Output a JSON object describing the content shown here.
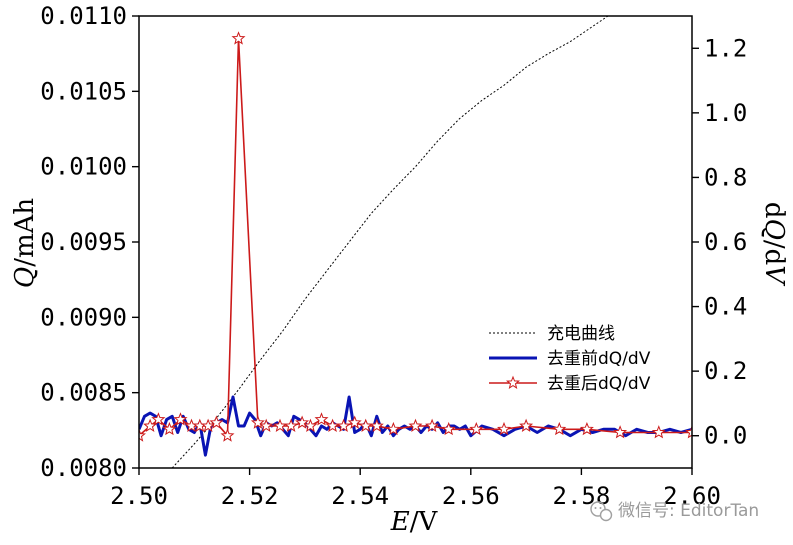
{
  "chart_data": {
    "type": "line",
    "x_label": {
      "var": "E",
      "unit": "/V"
    },
    "y_left_label": {
      "var": "Q",
      "unit": "/mAh"
    },
    "y_right_label": {
      "prefix": "d",
      "var": "Q",
      "suffix": "/d",
      "var2": "V"
    },
    "xlim": [
      2.5,
      2.6
    ],
    "ylim_left": [
      0.008,
      0.011
    ],
    "ylim_right": [
      -0.1,
      1.3
    ],
    "x_ticks": [
      "2.50",
      "2.52",
      "2.54",
      "2.56",
      "2.58",
      "2.60"
    ],
    "x_tick_values": [
      2.5,
      2.52,
      2.54,
      2.56,
      2.58,
      2.6
    ],
    "y_left_ticks": [
      "0.0080",
      "0.0085",
      "0.0090",
      "0.0095",
      "0.0100",
      "0.0105",
      "0.0110"
    ],
    "y_left_tick_values": [
      0.008,
      0.0085,
      0.009,
      0.0095,
      0.01,
      0.0105,
      0.011
    ],
    "y_right_ticks": [
      "0.0",
      "0.2",
      "0.4",
      "0.6",
      "0.8",
      "1.0",
      "1.2"
    ],
    "y_right_tick_values": [
      0.0,
      0.2,
      0.4,
      0.6,
      0.8,
      1.0,
      1.2
    ],
    "series": [
      {
        "name": "充电曲线",
        "axis": "left",
        "color": "#000000",
        "style": "dotted",
        "x": [
          2.506,
          2.51,
          2.514,
          2.518,
          2.522,
          2.526,
          2.53,
          2.534,
          2.538,
          2.542,
          2.546,
          2.55,
          2.554,
          2.558,
          2.562,
          2.566,
          2.57,
          2.574,
          2.578,
          2.582,
          2.586,
          2.5895
        ],
        "y": [
          0.008,
          0.00816,
          0.00833,
          0.00852,
          0.00872,
          0.00891,
          0.00912,
          0.00931,
          0.0095,
          0.00969,
          0.00985,
          0.01,
          0.01017,
          0.01032,
          0.01044,
          0.01054,
          0.01066,
          0.01075,
          0.01083,
          0.01093,
          0.01103,
          0.0111
        ]
      },
      {
        "name": "去重前dQ/dV",
        "axis": "right",
        "color": "#0a14b4",
        "style": "solid",
        "x": [
          2.5,
          2.501,
          2.502,
          2.503,
          2.504,
          2.505,
          2.506,
          2.507,
          2.508,
          2.509,
          2.51,
          2.511,
          2.512,
          2.513,
          2.514,
          2.515,
          2.516,
          2.517,
          2.518,
          2.519,
          2.52,
          2.521,
          2.522,
          2.523,
          2.524,
          2.525,
          2.526,
          2.527,
          2.528,
          2.529,
          2.53,
          2.531,
          2.532,
          2.533,
          2.534,
          2.535,
          2.536,
          2.537,
          2.538,
          2.539,
          2.54,
          2.541,
          2.542,
          2.543,
          2.544,
          2.545,
          2.546,
          2.547,
          2.548,
          2.549,
          2.55,
          2.551,
          2.552,
          2.553,
          2.554,
          2.555,
          2.556,
          2.557,
          2.558,
          2.559,
          2.56,
          2.562,
          2.564,
          2.566,
          2.568,
          2.57,
          2.572,
          2.574,
          2.576,
          2.578,
          2.58,
          2.582,
          2.584,
          2.586,
          2.588,
          2.59,
          2.592,
          2.594,
          2.596,
          2.598,
          2.6
        ],
        "y": [
          0.02,
          0.06,
          0.07,
          0.06,
          0.0,
          0.05,
          0.06,
          0.01,
          0.06,
          0.02,
          0.01,
          0.04,
          -0.06,
          0.03,
          0.04,
          0.05,
          0.04,
          0.12,
          0.03,
          0.03,
          0.07,
          0.05,
          0.0,
          0.04,
          0.03,
          0.04,
          0.02,
          0.0,
          0.06,
          0.05,
          0.04,
          0.02,
          0.0,
          0.03,
          0.02,
          0.04,
          0.03,
          0.02,
          0.12,
          0.01,
          0.02,
          0.04,
          0.0,
          0.06,
          0.01,
          0.03,
          0.0,
          0.02,
          0.03,
          0.02,
          0.03,
          0.01,
          0.03,
          0.02,
          0.04,
          0.01,
          0.03,
          0.03,
          0.02,
          0.03,
          0.0,
          0.03,
          0.02,
          0.0,
          0.02,
          0.03,
          0.01,
          0.03,
          0.02,
          0.0,
          0.02,
          0.01,
          0.02,
          0.02,
          0.0,
          0.02,
          0.01,
          0.01,
          0.02,
          0.01,
          0.02
        ]
      },
      {
        "name": "去重后dQ/dV",
        "axis": "right",
        "color": "#cc1a1a",
        "style": "solid-star",
        "x": [
          2.5,
          2.502,
          2.5035,
          2.5055,
          2.5075,
          2.5095,
          2.511,
          2.5125,
          2.514,
          2.516,
          2.518,
          2.5215,
          2.523,
          2.5255,
          2.5275,
          2.5295,
          2.531,
          2.533,
          2.535,
          2.537,
          2.539,
          2.541,
          2.543,
          2.546,
          2.55,
          2.553,
          2.556,
          2.561,
          2.566,
          2.57,
          2.576,
          2.581,
          2.587,
          2.594,
          2.6
        ],
        "y": [
          0.0,
          0.03,
          0.05,
          0.02,
          0.05,
          0.03,
          0.03,
          0.03,
          0.04,
          0.0,
          1.23,
          0.04,
          0.03,
          0.03,
          0.03,
          0.04,
          0.03,
          0.05,
          0.03,
          0.03,
          0.04,
          0.03,
          0.03,
          0.02,
          0.03,
          0.03,
          0.02,
          0.02,
          0.02,
          0.03,
          0.02,
          0.02,
          0.01,
          0.01,
          0.01
        ]
      }
    ],
    "legend": {
      "position": "lower-right",
      "entries": [
        "充电曲线",
        "去重前dQ/dV",
        "去重后dQ/dV"
      ]
    }
  },
  "watermark": {
    "text": "微信号: EditorTan",
    "icon": "wechat-icon"
  }
}
